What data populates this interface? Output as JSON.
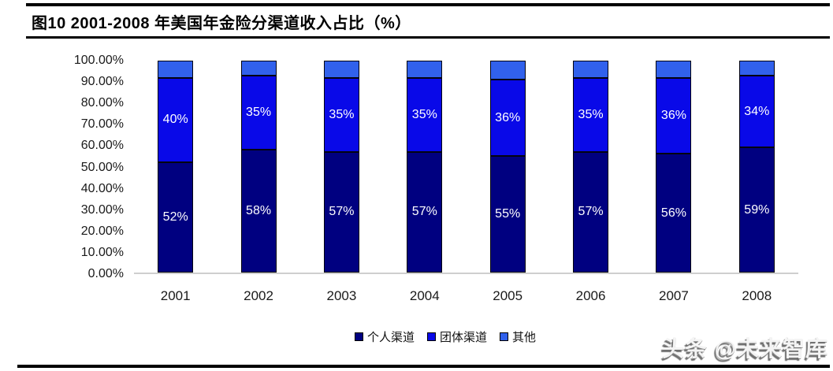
{
  "figure": {
    "title": "图10 2001-2008 年美国年金险分渠道收入占比（%）",
    "watermark": "头条 @未来智库"
  },
  "chart_data": {
    "type": "bar",
    "variant": "stacked-column-100pct",
    "title": "图10 2001-2008 年美国年金险分渠道收入占比（%）",
    "categories": [
      "2001",
      "2002",
      "2003",
      "2004",
      "2005",
      "2006",
      "2007",
      "2008"
    ],
    "series": [
      {
        "name": "个人渠道",
        "color": "#000080",
        "values": [
          52,
          58,
          57,
          57,
          55,
          57,
          56,
          59
        ],
        "labels": [
          "52%",
          "58%",
          "57%",
          "57%",
          "55%",
          "57%",
          "56%",
          "59%"
        ]
      },
      {
        "name": "团体渠道",
        "color": "#0909E8",
        "values": [
          40,
          35,
          35,
          35,
          36,
          35,
          36,
          34
        ],
        "labels": [
          "40%",
          "35%",
          "35%",
          "35%",
          "36%",
          "35%",
          "36%",
          "34%"
        ]
      },
      {
        "name": "其他",
        "color": "#3161EC",
        "values": [
          8,
          7,
          8,
          8,
          9,
          8,
          8,
          7
        ],
        "labels": []
      }
    ],
    "yticks": [
      "100.00%",
      "90.00%",
      "80.00%",
      "70.00%",
      "60.00%",
      "50.00%",
      "40.00%",
      "30.00%",
      "20.00%",
      "10.00%",
      "0.00%"
    ],
    "ylim": [
      0,
      100
    ],
    "xlabel": "",
    "ylabel": "",
    "grid": false,
    "legend_position": "bottom",
    "bar_label_color": "#FFFFFF"
  }
}
